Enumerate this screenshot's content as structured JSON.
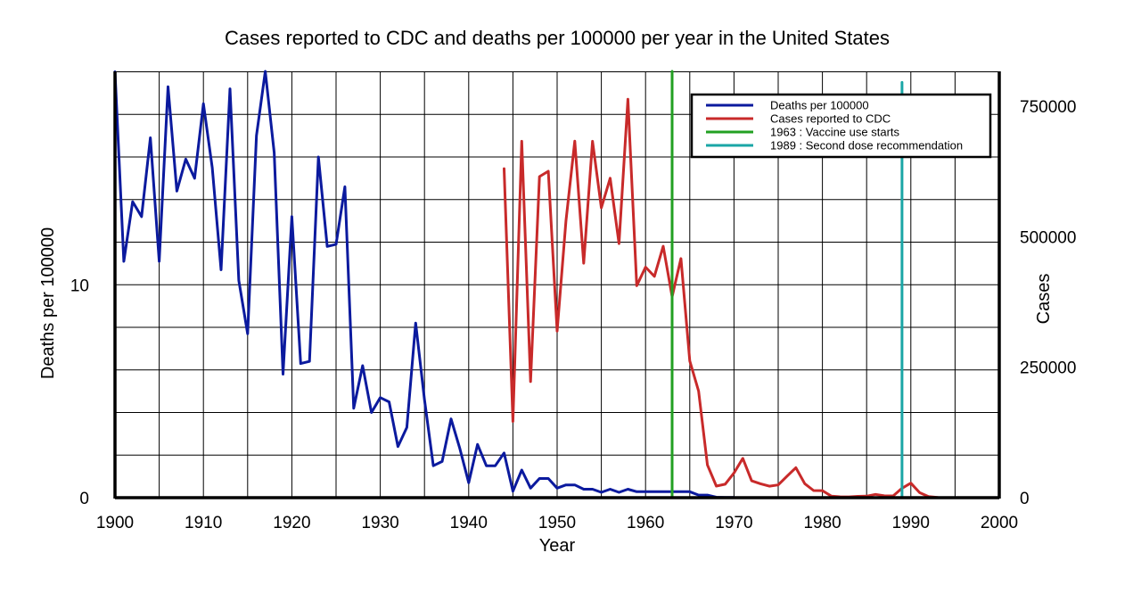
{
  "chart_data": {
    "type": "line",
    "title": "Cases reported to CDC and deaths per 100000 per year in the United States",
    "xlabel": "Year",
    "ylabel_left": "Deaths per 100000",
    "ylabel_right": "Cases",
    "xlim": [
      1900,
      2000
    ],
    "ylim_left": [
      0,
      20
    ],
    "ylim_right": [
      0,
      750000
    ],
    "x_ticks": [
      1900,
      1910,
      1920,
      1930,
      1940,
      1950,
      1960,
      1970,
      1980,
      1990,
      2000
    ],
    "y_ticks_left": [
      0,
      10
    ],
    "y_ticks_right": [
      0,
      250000,
      500000,
      750000
    ],
    "grid": true,
    "legend_position": "top-right",
    "series": [
      {
        "name": "Deaths per 100000",
        "axis": "left",
        "color": "#0b1a9e",
        "x": [
          1900,
          1901,
          1902,
          1903,
          1904,
          1905,
          1906,
          1907,
          1908,
          1909,
          1910,
          1911,
          1912,
          1913,
          1914,
          1915,
          1916,
          1917,
          1918,
          1919,
          1920,
          1921,
          1922,
          1923,
          1924,
          1925,
          1926,
          1927,
          1928,
          1929,
          1930,
          1931,
          1932,
          1933,
          1934,
          1935,
          1936,
          1937,
          1938,
          1939,
          1940,
          1941,
          1942,
          1943,
          1944,
          1945,
          1946,
          1947,
          1948,
          1949,
          1950,
          1951,
          1952,
          1953,
          1954,
          1955,
          1956,
          1957,
          1958,
          1959,
          1960,
          1961,
          1962,
          1963,
          1964,
          1965,
          1966,
          1967,
          1968,
          1969,
          1970
        ],
        "y": [
          20.0,
          11.1,
          13.9,
          13.2,
          16.9,
          11.1,
          19.3,
          14.4,
          15.9,
          15.0,
          18.5,
          15.5,
          10.7,
          19.2,
          10.2,
          7.7,
          17.0,
          21.1,
          16.2,
          5.8,
          13.2,
          6.3,
          6.4,
          16.0,
          11.8,
          11.9,
          14.6,
          4.2,
          6.2,
          4.0,
          4.7,
          4.5,
          2.4,
          3.3,
          8.2,
          4.6,
          1.5,
          1.7,
          3.7,
          2.3,
          0.7,
          2.5,
          1.5,
          1.5,
          2.1,
          0.3,
          1.3,
          0.45,
          0.9,
          0.9,
          0.45,
          0.6,
          0.6,
          0.4,
          0.4,
          0.25,
          0.4,
          0.25,
          0.4,
          0.28,
          0.28,
          0.28,
          0.28,
          0.28,
          0.28,
          0.28,
          0.12,
          0.12,
          0.02,
          0.01,
          0.01
        ]
      },
      {
        "name": "Cases reported to CDC",
        "axis": "right",
        "color": "#c82a2a",
        "x": [
          1944,
          1945,
          1946,
          1947,
          1948,
          1949,
          1950,
          1951,
          1952,
          1953,
          1954,
          1955,
          1956,
          1957,
          1958,
          1959,
          1960,
          1961,
          1962,
          1963,
          1964,
          1965,
          1966,
          1967,
          1968,
          1969,
          1970,
          1971,
          1972,
          1973,
          1974,
          1975,
          1976,
          1977,
          1978,
          1979,
          1980,
          1981,
          1982,
          1983,
          1984,
          1985,
          1986,
          1987,
          1988,
          1989,
          1990,
          1991,
          1992,
          1993
        ],
        "y": [
          630291,
          146013,
          682720,
          222375,
          615104,
          625281,
          319124,
          530118,
          683077,
          449146,
          682720,
          555156,
          611936,
          486799,
          763094,
          406162,
          441703,
          423919,
          481530,
          385156,
          458083,
          261904,
          204136,
          62705,
          22231,
          25826,
          47351,
          75290,
          32275,
          26690,
          22094,
          24374,
          41126,
          57345,
          26871,
          13597,
          13506,
          3124,
          1714,
          1497,
          2587,
          2822,
          6282,
          3655,
          3396,
          18193,
          27786,
          9643,
          2237,
          312
        ]
      },
      {
        "name": "1963 : Vaccine use starts",
        "axis": "left",
        "color": "#22a022",
        "x": [
          1963,
          1963
        ],
        "y": [
          0,
          24
        ]
      },
      {
        "name": "1989 : Second dose recommendation",
        "axis": "left",
        "color": "#1aa6a6",
        "x": [
          1989,
          1989
        ],
        "y": [
          0,
          19.5
        ]
      }
    ]
  }
}
